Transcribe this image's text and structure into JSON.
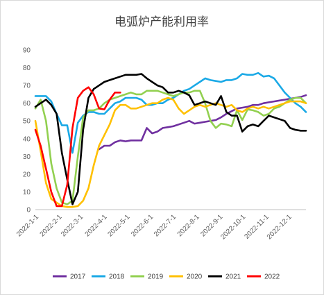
{
  "chart_data": {
    "type": "line",
    "title": "电弧炉产能利用率",
    "xlabel": "",
    "ylabel": "",
    "ylim": [
      0,
      90
    ],
    "yticks": [
      0,
      10,
      20,
      30,
      40,
      50,
      60,
      70,
      80,
      90
    ],
    "xlim": [
      1,
      52
    ],
    "xtick_labels": [
      "2022-1-1",
      "2022-2-1",
      "2022-3-1",
      "2022-4-1",
      "2022-5-1",
      "2022-6-1",
      "2022-7-1",
      "2022-8-1",
      "2022-9-1",
      "2022-10-1",
      "2022-11-1",
      "2022-12-1"
    ],
    "xtick_weeks": [
      1,
      5.4,
      9.4,
      13.9,
      18.2,
      22.6,
      26.9,
      31.3,
      35.7,
      40,
      44.4,
      48.7
    ],
    "grid": false,
    "legend": "bottom",
    "series": [
      {
        "name": "2017",
        "color": "#7030a0",
        "x": [
          13,
          14,
          15,
          16,
          17,
          18,
          19,
          20,
          21,
          22,
          23,
          24,
          25,
          26,
          27,
          28,
          29,
          30,
          31,
          32,
          33,
          34,
          35,
          36,
          37,
          38,
          39,
          40,
          41,
          42,
          43,
          44,
          45,
          46,
          47,
          48,
          49,
          50,
          51,
          52
        ],
        "values": [
          34,
          36,
          36,
          38,
          39,
          38.5,
          39,
          39,
          39,
          46,
          43,
          44,
          46,
          46.5,
          47,
          48,
          49,
          50,
          48.5,
          49,
          49.5,
          50,
          50.5,
          52,
          54,
          55.5,
          57,
          57.5,
          58,
          59,
          59,
          60,
          60.5,
          61,
          61.5,
          62,
          62.5,
          63,
          63.5,
          64.5
        ]
      },
      {
        "name": "2018",
        "color": "#1aa9e6",
        "x": [
          1,
          2,
          3,
          4,
          5,
          6,
          7,
          8,
          9,
          10,
          11,
          12,
          13,
          14,
          15,
          16,
          17,
          18,
          19,
          20,
          21,
          22,
          23,
          24,
          25,
          26,
          27,
          28,
          29,
          30,
          31,
          32,
          33,
          34,
          35,
          36,
          37,
          38,
          39,
          40,
          41,
          42,
          43,
          44,
          45,
          46,
          47,
          48,
          49,
          50,
          51,
          52
        ],
        "values": [
          64,
          64,
          64,
          61,
          54,
          47.5,
          47.5,
          32,
          49,
          53,
          55,
          55,
          54,
          54,
          57,
          60,
          61,
          63,
          63,
          63,
          62,
          59,
          59,
          60,
          60,
          62,
          63,
          65,
          67,
          68,
          70,
          72,
          74,
          73,
          72.5,
          72,
          73,
          73,
          74,
          76.5,
          76,
          76,
          77,
          75,
          75.5,
          74,
          70,
          66,
          63,
          60,
          58,
          55
        ]
      },
      {
        "name": "2019",
        "color": "#92d050",
        "x": [
          1,
          2,
          3,
          4,
          5,
          6,
          7,
          8,
          9,
          10,
          11,
          12,
          13,
          14,
          15,
          16,
          17,
          18,
          19,
          20,
          21,
          22,
          23,
          24,
          25,
          26,
          27,
          28,
          29,
          30,
          31,
          32,
          33,
          34,
          35,
          36,
          37,
          38,
          39,
          40,
          41,
          42,
          43,
          44,
          45,
          46,
          47,
          48,
          49,
          50,
          51,
          52
        ],
        "values": [
          57,
          62,
          50,
          26,
          12,
          4,
          3,
          5,
          30,
          52,
          56,
          56,
          57,
          60,
          62,
          63,
          64,
          65,
          66,
          65,
          65,
          67,
          67,
          67,
          66,
          65,
          64,
          65,
          66,
          66,
          67,
          67,
          60,
          50,
          46,
          48.5,
          48,
          47,
          56,
          50.5,
          56.5,
          56,
          55,
          53,
          54,
          57,
          58,
          60,
          62,
          63,
          63,
          60
        ]
      },
      {
        "name": "2020",
        "color": "#ffc000",
        "x": [
          1,
          2,
          3,
          4,
          5,
          6,
          7,
          8,
          9,
          10,
          11,
          12,
          13,
          14,
          15,
          16,
          17,
          18,
          19,
          20,
          21,
          22,
          23,
          24,
          25,
          26,
          27,
          28,
          29,
          30,
          31,
          32,
          33,
          34,
          35,
          36,
          37,
          38,
          39,
          40,
          41,
          42,
          43,
          44,
          45,
          46,
          47,
          48,
          49,
          50,
          51,
          52
        ],
        "values": [
          50,
          33,
          15,
          6,
          4,
          2,
          1.5,
          1.5,
          2,
          5,
          12,
          25,
          36,
          42,
          48,
          56,
          59,
          59,
          57,
          57,
          58,
          59,
          60,
          60,
          62,
          63,
          62,
          57,
          54,
          56,
          58,
          59,
          58,
          59,
          60,
          59,
          58,
          59,
          56,
          55,
          57,
          58,
          57,
          58,
          57,
          58,
          59,
          60,
          61,
          61,
          61,
          60
        ]
      },
      {
        "name": "2021",
        "color": "#000000",
        "x": [
          1,
          2,
          3,
          4,
          5,
          6,
          7,
          8,
          9,
          10,
          11,
          12,
          13,
          14,
          15,
          16,
          17,
          18,
          19,
          20,
          21,
          22,
          23,
          24,
          25,
          26,
          27,
          28,
          29,
          30,
          31,
          32,
          33,
          34,
          35,
          36,
          37,
          38,
          39,
          40,
          41,
          42,
          43,
          44,
          45,
          46,
          47,
          48,
          49,
          50,
          51,
          52
        ],
        "values": [
          58,
          60,
          62,
          59,
          54,
          32,
          17,
          3,
          10,
          45,
          63,
          68,
          70,
          72,
          73,
          74,
          75,
          76,
          76,
          76,
          76.5,
          74,
          72,
          70,
          69,
          66,
          66,
          67,
          66,
          64.5,
          59,
          60,
          61,
          60,
          59,
          64,
          55,
          53,
          53,
          44,
          47,
          48,
          47,
          50,
          53,
          52,
          51,
          50,
          46,
          45,
          44.5,
          44.5
        ]
      },
      {
        "name": "2022",
        "color": "#ff0000",
        "x": [
          1,
          2,
          3,
          4,
          5,
          6,
          7,
          8,
          9,
          10,
          11,
          12,
          13,
          14,
          15,
          16,
          17
        ],
        "values": [
          45,
          36,
          23,
          10,
          2,
          2,
          14,
          46,
          63,
          67,
          69,
          65,
          57,
          56.5,
          62,
          66,
          66
        ]
      }
    ]
  }
}
